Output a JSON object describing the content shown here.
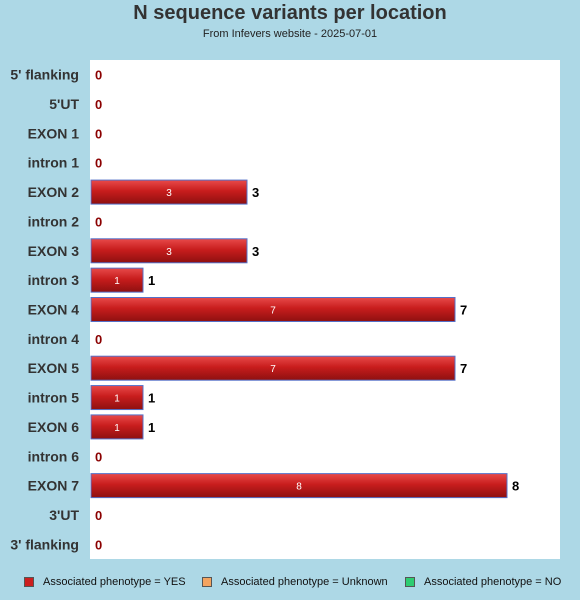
{
  "chart_data": {
    "type": "bar",
    "orientation": "horizontal",
    "title": "N sequence variants per location",
    "subtitle": "From Infevers website - 2025-07-01",
    "categories": [
      "5' flanking",
      "5'UT",
      "EXON 1",
      "intron 1",
      "EXON 2",
      "intron 2",
      "EXON 3",
      "intron 3",
      "EXON 4",
      "intron 4",
      "EXON 5",
      "intron 5",
      "EXON 6",
      "intron 6",
      "EXON 7",
      "3'UT",
      "3' flanking"
    ],
    "series": [
      {
        "name": "Associated phenotype = YES",
        "values": [
          0,
          0,
          0,
          0,
          3,
          0,
          3,
          1,
          7,
          0,
          7,
          1,
          1,
          0,
          8,
          0,
          0
        ],
        "color": "#cc1f1f"
      },
      {
        "name": "Associated phenotype = Unknown",
        "values": [
          0,
          0,
          0,
          0,
          0,
          0,
          0,
          0,
          0,
          0,
          0,
          0,
          0,
          0,
          0,
          0,
          0
        ],
        "color": "#f4a460"
      },
      {
        "name": "Associated phenotype = NO",
        "values": [
          0,
          0,
          0,
          0,
          0,
          0,
          0,
          0,
          0,
          0,
          0,
          0,
          0,
          0,
          0,
          0,
          0
        ],
        "color": "#2ecc71"
      }
    ],
    "totals": [
      0,
      0,
      0,
      0,
      3,
      0,
      3,
      1,
      7,
      0,
      7,
      1,
      1,
      0,
      8,
      0,
      0
    ],
    "xlim": [
      0,
      9
    ],
    "grid": false,
    "legend_position": "bottom",
    "colors": {
      "background": "#add8e6",
      "plot_background": "#ffffff",
      "zero_label": "#8b0000",
      "total_label": "#000000"
    }
  }
}
